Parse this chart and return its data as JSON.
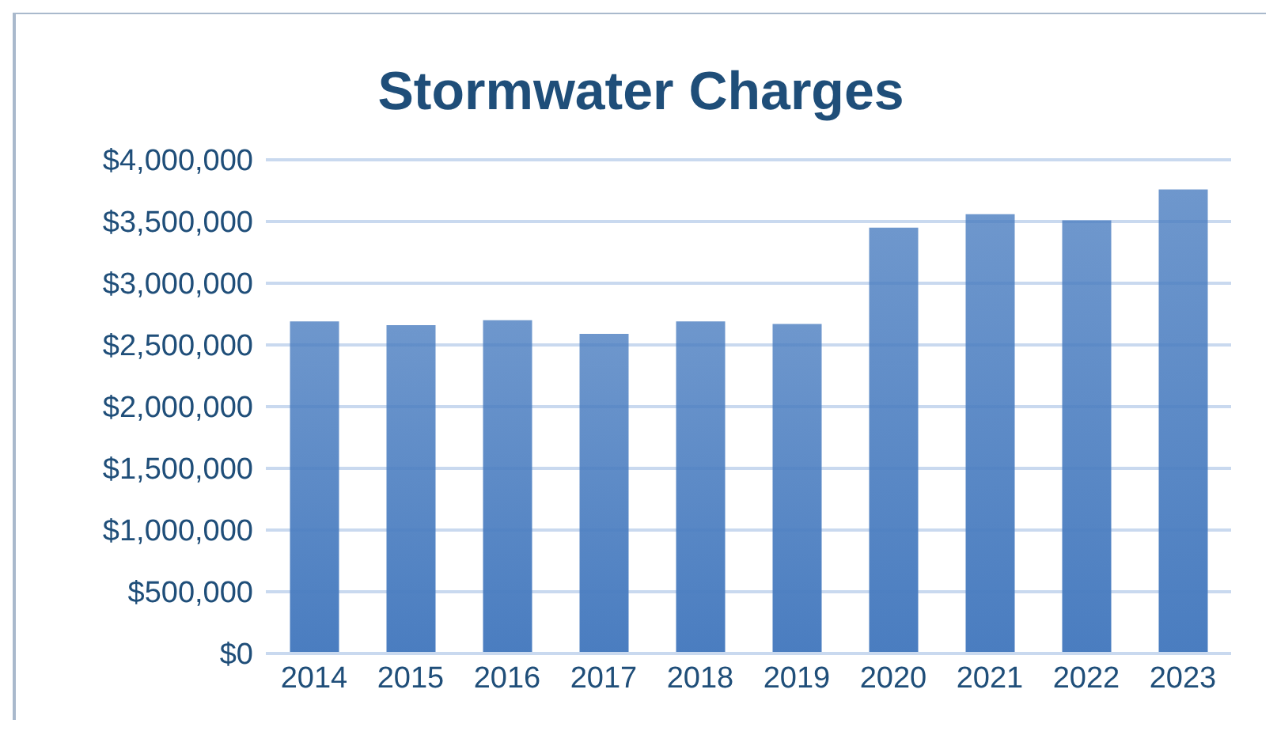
{
  "chart_data": {
    "type": "bar",
    "title": "Stormwater Charges",
    "categories": [
      "2014",
      "2015",
      "2016",
      "2017",
      "2018",
      "2019",
      "2020",
      "2021",
      "2022",
      "2023"
    ],
    "values": [
      2690000,
      2660000,
      2700000,
      2590000,
      2690000,
      2670000,
      3450000,
      3560000,
      3510000,
      3760000
    ],
    "color": "#4a7dc0",
    "ylim": [
      0,
      4000000
    ],
    "yticks": [
      {
        "value": 0,
        "label": "$0"
      },
      {
        "value": 500000,
        "label": "$500,000"
      },
      {
        "value": 1000000,
        "label": "$1,000,000"
      },
      {
        "value": 1500000,
        "label": "$1,500,000"
      },
      {
        "value": 2000000,
        "label": "$2,000,000"
      },
      {
        "value": 2500000,
        "label": "$2,500,000"
      },
      {
        "value": 3000000,
        "label": "$3,000,000"
      },
      {
        "value": 3500000,
        "label": "$3,500,000"
      },
      {
        "value": 4000000,
        "label": "$4,000,000"
      }
    ],
    "grid": "y",
    "legend": false
  }
}
